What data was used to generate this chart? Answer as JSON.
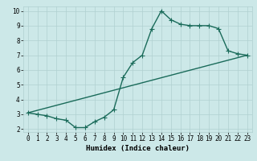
{
  "xlabel": "Humidex (Indice chaleur)",
  "bg_color": "#cce8e8",
  "grid_color": "#b0d0d0",
  "line_color": "#1a6b5a",
  "marker_color": "#1a6b5a",
  "xlim": [
    -0.5,
    23.5
  ],
  "ylim": [
    1.8,
    10.3
  ],
  "xticks": [
    0,
    1,
    2,
    3,
    4,
    5,
    6,
    7,
    8,
    9,
    10,
    11,
    12,
    13,
    14,
    15,
    16,
    17,
    18,
    19,
    20,
    21,
    22,
    23
  ],
  "yticks": [
    2,
    3,
    4,
    5,
    6,
    7,
    8,
    9,
    10
  ],
  "curve1_x": [
    0,
    1,
    2,
    3,
    4,
    5,
    6,
    7,
    8,
    9,
    10,
    11,
    12,
    13,
    14,
    15,
    16,
    17,
    18,
    19,
    20,
    21,
    22,
    23
  ],
  "curve1_y": [
    3.1,
    3.0,
    2.9,
    2.7,
    2.6,
    2.1,
    2.1,
    2.5,
    2.8,
    3.3,
    5.5,
    6.5,
    7.0,
    8.8,
    10.0,
    9.4,
    9.1,
    9.0,
    9.0,
    9.0,
    8.8,
    7.3,
    7.1,
    7.0
  ],
  "curve2_x": [
    0,
    23
  ],
  "curve2_y": [
    3.1,
    7.0
  ],
  "marker_size": 4,
  "linewidth": 1.0,
  "label_fontsize": 6.5,
  "tick_fontsize": 5.5
}
